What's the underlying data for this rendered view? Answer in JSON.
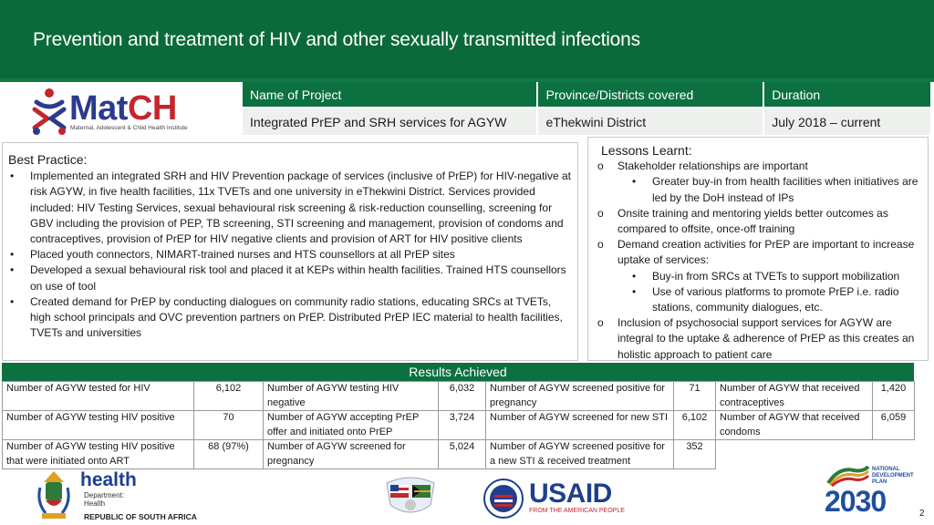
{
  "header": {
    "title": "Prevention and treatment of HIV and other sexually transmitted infections"
  },
  "logo": {
    "name_part1": "Mat",
    "name_part2": "CH",
    "tagline": "Maternal, Adolescent & Child Health Institute"
  },
  "project": {
    "headers": [
      "Name of Project",
      "Province/Districts covered",
      "Duration"
    ],
    "values": [
      "Integrated PrEP and SRH services for AGYW",
      "eThekwini District",
      "July 2018 – current"
    ]
  },
  "best_practice": {
    "title": "Best Practice:",
    "items": [
      "Implemented an integrated SRH and HIV Prevention package of services (inclusive of PrEP) for HIV-negative at risk AGYW, in five health facilities, 11x TVETs and one university in eThekwini District. Services provided included: HIV Testing Services, sexual behavioural risk screening & risk-reduction counselling, screening for GBV including the provision of PEP, TB screening, STI screening and management, provision of condoms and contraceptives, provision of PrEP for HIV negative clients and provision of ART for HIV positive clients",
      "Placed youth connectors, NIMART-trained nurses and HTS counsellors at all PrEP sites",
      "Developed a sexual behavioural risk tool and placed it at KEPs within health facilities. Trained HTS counsellors on use of tool",
      "Created demand for PrEP by conducting dialogues on community radio stations, educating SRCs at TVETs, high school principals and OVC prevention partners on PrEP. Distributed PrEP IEC material to health facilities, TVETs and universities"
    ]
  },
  "lessons": {
    "title": "Lessons Learnt:",
    "marker": "o",
    "items": [
      {
        "text": "Stakeholder relationships are important",
        "sub": [
          "Greater buy-in from health facilities when initiatives are led by the DoH instead of IPs"
        ]
      },
      {
        "text": "Onsite training and mentoring  yields better outcomes as compared to offsite, once-off  training",
        "sub": []
      },
      {
        "text": "Demand creation activities for PrEP are important to increase uptake of services:",
        "sub": [
          "Buy-in from SRCs at TVETs to support mobilization",
          "Use of various platforms to promote PrEP i.e. radio stations, community dialogues, etc."
        ]
      },
      {
        "text": "Inclusion of psychosocial support services for AGYW are integral to the  uptake  & adherence of PrEP as this creates an holistic approach to patient care",
        "sub": []
      }
    ]
  },
  "results": {
    "title": "Results Achieved",
    "rows": [
      [
        {
          "label": "Number of AGYW tested for HIV",
          "value": "6,102"
        },
        {
          "label": "Number of AGYW testing HIV negative",
          "value": "6,032"
        },
        {
          "label": "Number of AGYW screened positive for pregnancy",
          "value": "71"
        },
        {
          "label": "Number of AGYW that received contraceptives",
          "value": "1,420"
        }
      ],
      [
        {
          "label": "Number of AGYW testing HIV positive",
          "value": "70"
        },
        {
          "label": "Number of AGYW accepting PrEP offer and initiated onto PrEP",
          "value": "3,724"
        },
        {
          "label": "Number of AGYW screened for new STI",
          "value": "6,102"
        },
        {
          "label": "Number of AGYW that received condoms",
          "value": "6,059"
        }
      ],
      [
        {
          "label": "Number of AGYW testing HIV positive that were initiated onto ART",
          "value": "68 (97%)"
        },
        {
          "label": "Number of AGYW screened for pregnancy",
          "value": "5,024"
        },
        {
          "label": "Number of AGYW screened positive for a new STI & received treatment",
          "value": "352"
        }
      ]
    ]
  },
  "footer": {
    "health_word": "health",
    "health_dept_line1": "Department:",
    "health_dept_line2": "Health",
    "health_country": "REPUBLIC OF SOUTH AFRICA",
    "usaid_word": "USAID",
    "usaid_tagline": "FROM THE AMERICAN PEOPLE",
    "ndp_line1": "NATIONAL",
    "ndp_line2": "DEVELOPMENT",
    "ndp_line3": "PLAN",
    "ndp_year": "2030",
    "page_number": "2"
  },
  "colors": {
    "brand_green": "#0b6a3a",
    "header_green": "#0d7040",
    "match_blue": "#2b3a8f",
    "match_red": "#c4262e"
  }
}
